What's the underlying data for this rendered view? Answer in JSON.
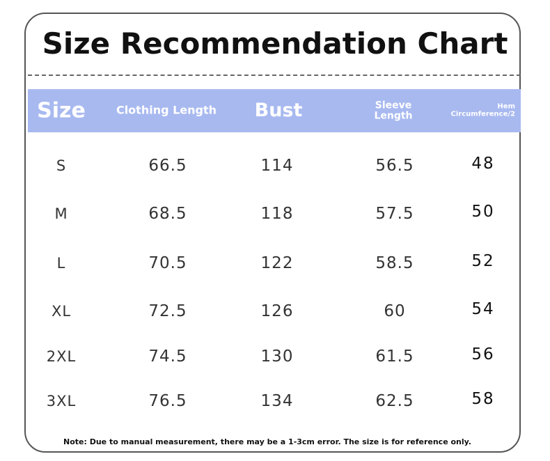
{
  "title": "Size Recommendation Chart",
  "table": {
    "headers": [
      "Size",
      "Clothing Length",
      "Bust",
      "Sleeve Length",
      "Hem Circumference/2"
    ],
    "rows": [
      [
        "S",
        66.5,
        114,
        56.5,
        48
      ],
      [
        "M",
        68.5,
        118,
        57.5,
        50
      ],
      [
        "L",
        70.5,
        122,
        58.5,
        52
      ],
      [
        "XL",
        72.5,
        126,
        60,
        54
      ],
      [
        "2XL",
        74.5,
        130,
        61.5,
        56
      ],
      [
        "3XL",
        76.5,
        134,
        62.5,
        58
      ]
    ]
  },
  "note": "Note: Due to manual measurement, there may be a 1-3cm error. The size is for reference only."
}
